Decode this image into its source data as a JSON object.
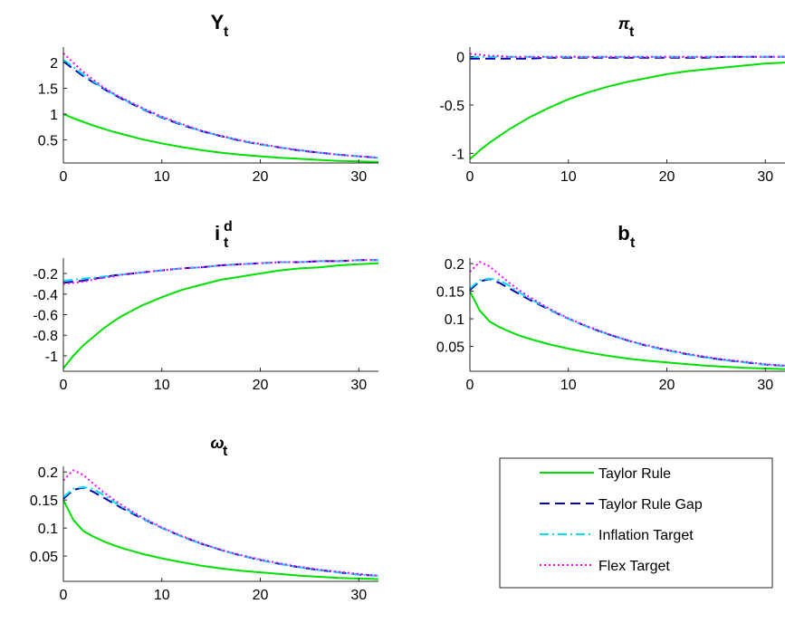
{
  "figure": {
    "legend": {
      "placement": "bottom-right",
      "entries": [
        "Taylor Rule",
        "Taylor Rule Gap",
        "Inflation Target",
        "Flex Target"
      ]
    }
  },
  "series_styles": [
    {
      "name": "Taylor Rule",
      "color": "#00e000",
      "dash": "solid"
    },
    {
      "name": "Taylor Rule Gap",
      "color": "#0000b0",
      "dash": "dashed"
    },
    {
      "name": "Inflation Target",
      "color": "#00e0f0",
      "dash": "dash-dot"
    },
    {
      "name": "Flex Target",
      "color": "#ff00ff",
      "dash": "dotted"
    }
  ],
  "chart_data": [
    {
      "type": "line",
      "title": {
        "base": "Y",
        "sub": "t",
        "sup": "",
        "greek": false
      },
      "xlim": [
        0,
        32
      ],
      "ylim": [
        0.05,
        2.3
      ],
      "xticks": [
        0,
        10,
        20,
        30
      ],
      "yticks": [
        0.5,
        1,
        1.5,
        2
      ],
      "ytick_labels": [
        "0.5",
        "1",
        "1.5",
        "2"
      ],
      "grid": false,
      "x": [
        0,
        1,
        2,
        3,
        4,
        5,
        6,
        8,
        10,
        12,
        14,
        16,
        18,
        20,
        22,
        24,
        26,
        28,
        30,
        32
      ],
      "series": [
        {
          "name": "Taylor Rule",
          "values": [
            1.0,
            0.92,
            0.85,
            0.78,
            0.72,
            0.66,
            0.61,
            0.51,
            0.43,
            0.36,
            0.3,
            0.25,
            0.21,
            0.18,
            0.15,
            0.13,
            0.11,
            0.09,
            0.08,
            0.07
          ]
        },
        {
          "name": "Taylor Rule Gap",
          "values": [
            2.02,
            1.88,
            1.74,
            1.62,
            1.5,
            1.39,
            1.29,
            1.1,
            0.93,
            0.79,
            0.67,
            0.57,
            0.48,
            0.41,
            0.35,
            0.29,
            0.25,
            0.21,
            0.18,
            0.15
          ]
        },
        {
          "name": "Inflation Target",
          "values": [
            2.05,
            1.92,
            1.77,
            1.64,
            1.51,
            1.4,
            1.3,
            1.11,
            0.94,
            0.8,
            0.67,
            0.57,
            0.49,
            0.41,
            0.35,
            0.3,
            0.25,
            0.21,
            0.18,
            0.15
          ]
        },
        {
          "name": "Flex Target",
          "values": [
            2.18,
            2.0,
            1.82,
            1.67,
            1.53,
            1.41,
            1.31,
            1.12,
            0.95,
            0.81,
            0.68,
            0.58,
            0.49,
            0.42,
            0.35,
            0.3,
            0.25,
            0.21,
            0.18,
            0.15
          ]
        }
      ]
    },
    {
      "type": "line",
      "title": {
        "base": "π",
        "sub": "t",
        "sup": "",
        "greek": true
      },
      "xlim": [
        0,
        32
      ],
      "ylim": [
        -1.1,
        0.1
      ],
      "xticks": [
        0,
        10,
        20,
        30
      ],
      "yticks": [
        -1,
        -0.5,
        0
      ],
      "ytick_labels": [
        "-1",
        "-0.5",
        "0"
      ],
      "grid": false,
      "x": [
        0,
        1,
        2,
        3,
        4,
        5,
        6,
        8,
        10,
        12,
        14,
        16,
        18,
        20,
        22,
        24,
        26,
        28,
        30,
        32
      ],
      "series": [
        {
          "name": "Taylor Rule",
          "values": [
            -1.06,
            -0.97,
            -0.89,
            -0.82,
            -0.75,
            -0.69,
            -0.63,
            -0.53,
            -0.44,
            -0.37,
            -0.31,
            -0.26,
            -0.22,
            -0.18,
            -0.15,
            -0.13,
            -0.11,
            -0.09,
            -0.07,
            -0.06
          ]
        },
        {
          "name": "Taylor Rule Gap",
          "values": [
            -0.02,
            -0.02,
            -0.02,
            -0.02,
            -0.02,
            -0.02,
            -0.02,
            -0.01,
            -0.01,
            -0.01,
            -0.01,
            -0.01,
            -0.01,
            -0.01,
            -0.01,
            -0.01,
            0.0,
            0.0,
            0.0,
            0.0
          ]
        },
        {
          "name": "Inflation Target",
          "values": [
            0.0,
            0.0,
            0.0,
            0.0,
            0.0,
            0.0,
            0.0,
            0.0,
            0.0,
            0.0,
            0.0,
            0.0,
            0.0,
            0.0,
            0.0,
            0.0,
            0.0,
            0.0,
            0.0,
            0.0
          ]
        },
        {
          "name": "Flex Target",
          "values": [
            0.03,
            0.02,
            0.01,
            0.01,
            0.0,
            0.0,
            0.0,
            0.0,
            0.0,
            0.0,
            0.0,
            0.0,
            0.0,
            0.0,
            0.0,
            0.0,
            0.0,
            0.0,
            0.0,
            0.0
          ]
        }
      ]
    },
    {
      "type": "line",
      "title": {
        "base": "i",
        "sub": "t",
        "sup": "d",
        "greek": false
      },
      "xlim": [
        0,
        32
      ],
      "ylim": [
        -1.15,
        -0.05
      ],
      "xticks": [
        0,
        10,
        20,
        30
      ],
      "yticks": [
        -1,
        -0.8,
        -0.6,
        -0.4,
        -0.2
      ],
      "ytick_labels": [
        "-1",
        "-0.8",
        "-0.6",
        "-0.4",
        "-0.2"
      ],
      "grid": false,
      "x": [
        0,
        1,
        2,
        3,
        4,
        5,
        6,
        8,
        10,
        12,
        14,
        16,
        18,
        20,
        22,
        24,
        26,
        28,
        30,
        32
      ],
      "series": [
        {
          "name": "Taylor Rule",
          "values": [
            -1.12,
            -1.0,
            -0.9,
            -0.82,
            -0.74,
            -0.67,
            -0.61,
            -0.51,
            -0.43,
            -0.36,
            -0.31,
            -0.26,
            -0.23,
            -0.2,
            -0.17,
            -0.15,
            -0.14,
            -0.12,
            -0.11,
            -0.1
          ]
        },
        {
          "name": "Taylor Rule Gap",
          "values": [
            -0.29,
            -0.28,
            -0.27,
            -0.25,
            -0.24,
            -0.22,
            -0.21,
            -0.19,
            -0.17,
            -0.15,
            -0.14,
            -0.12,
            -0.11,
            -0.1,
            -0.09,
            -0.09,
            -0.08,
            -0.08,
            -0.07,
            -0.07
          ]
        },
        {
          "name": "Inflation Target",
          "values": [
            -0.27,
            -0.26,
            -0.25,
            -0.24,
            -0.23,
            -0.22,
            -0.21,
            -0.19,
            -0.17,
            -0.15,
            -0.14,
            -0.12,
            -0.11,
            -0.1,
            -0.09,
            -0.09,
            -0.08,
            -0.08,
            -0.07,
            -0.07
          ]
        },
        {
          "name": "Flex Target",
          "values": [
            -0.3,
            -0.29,
            -0.28,
            -0.26,
            -0.24,
            -0.23,
            -0.21,
            -0.19,
            -0.17,
            -0.15,
            -0.14,
            -0.12,
            -0.11,
            -0.1,
            -0.09,
            -0.09,
            -0.08,
            -0.08,
            -0.07,
            -0.07
          ]
        }
      ]
    },
    {
      "type": "line",
      "title": {
        "base": "b",
        "sub": "t",
        "sup": "",
        "greek": false
      },
      "xlim": [
        0,
        32
      ],
      "ylim": [
        0.005,
        0.21
      ],
      "xticks": [
        0,
        10,
        20,
        30
      ],
      "yticks": [
        0.05,
        0.1,
        0.15,
        0.2
      ],
      "ytick_labels": [
        "0.05",
        "0.1",
        "0.15",
        "0.2"
      ],
      "grid": false,
      "x": [
        0,
        1,
        2,
        3,
        4,
        5,
        6,
        8,
        10,
        12,
        14,
        16,
        18,
        20,
        22,
        24,
        26,
        28,
        30,
        32
      ],
      "series": [
        {
          "name": "Taylor Rule",
          "values": [
            0.15,
            0.115,
            0.095,
            0.085,
            0.077,
            0.07,
            0.064,
            0.054,
            0.046,
            0.039,
            0.033,
            0.028,
            0.024,
            0.021,
            0.018,
            0.015,
            0.013,
            0.011,
            0.01,
            0.009
          ]
        },
        {
          "name": "Taylor Rule Gap",
          "values": [
            0.152,
            0.168,
            0.172,
            0.165,
            0.155,
            0.145,
            0.135,
            0.117,
            0.1,
            0.085,
            0.072,
            0.061,
            0.051,
            0.043,
            0.036,
            0.03,
            0.025,
            0.021,
            0.017,
            0.015
          ]
        },
        {
          "name": "Inflation Target",
          "values": [
            0.155,
            0.17,
            0.173,
            0.17,
            0.16,
            0.148,
            0.137,
            0.118,
            0.1,
            0.085,
            0.072,
            0.061,
            0.051,
            0.043,
            0.036,
            0.03,
            0.025,
            0.021,
            0.017,
            0.015
          ]
        },
        {
          "name": "Flex Target",
          "values": [
            0.185,
            0.203,
            0.195,
            0.18,
            0.165,
            0.152,
            0.14,
            0.119,
            0.101,
            0.086,
            0.073,
            0.061,
            0.052,
            0.044,
            0.037,
            0.031,
            0.026,
            0.022,
            0.018,
            0.015
          ]
        }
      ]
    },
    {
      "type": "line",
      "title": {
        "base": "ω",
        "sub": "t",
        "sup": "",
        "greek": true
      },
      "xlim": [
        0,
        32
      ],
      "ylim": [
        0.005,
        0.21
      ],
      "xticks": [
        0,
        10,
        20,
        30
      ],
      "yticks": [
        0.05,
        0.1,
        0.15,
        0.2
      ],
      "ytick_labels": [
        "0.05",
        "0.1",
        "0.15",
        "0.2"
      ],
      "grid": false,
      "x": [
        0,
        1,
        2,
        3,
        4,
        5,
        6,
        8,
        10,
        12,
        14,
        16,
        18,
        20,
        22,
        24,
        26,
        28,
        30,
        32
      ],
      "series": [
        {
          "name": "Taylor Rule",
          "values": [
            0.15,
            0.115,
            0.095,
            0.085,
            0.077,
            0.07,
            0.064,
            0.054,
            0.046,
            0.039,
            0.033,
            0.028,
            0.024,
            0.021,
            0.018,
            0.015,
            0.013,
            0.011,
            0.01,
            0.009
          ]
        },
        {
          "name": "Taylor Rule Gap",
          "values": [
            0.152,
            0.168,
            0.172,
            0.165,
            0.155,
            0.145,
            0.135,
            0.117,
            0.1,
            0.085,
            0.072,
            0.061,
            0.051,
            0.043,
            0.036,
            0.03,
            0.025,
            0.021,
            0.017,
            0.015
          ]
        },
        {
          "name": "Inflation Target",
          "values": [
            0.155,
            0.17,
            0.173,
            0.17,
            0.16,
            0.148,
            0.137,
            0.118,
            0.1,
            0.085,
            0.072,
            0.061,
            0.051,
            0.043,
            0.036,
            0.03,
            0.025,
            0.021,
            0.017,
            0.015
          ]
        },
        {
          "name": "Flex Target",
          "values": [
            0.185,
            0.203,
            0.195,
            0.18,
            0.165,
            0.152,
            0.14,
            0.119,
            0.101,
            0.086,
            0.073,
            0.061,
            0.052,
            0.044,
            0.037,
            0.031,
            0.026,
            0.022,
            0.018,
            0.015
          ]
        }
      ]
    }
  ]
}
